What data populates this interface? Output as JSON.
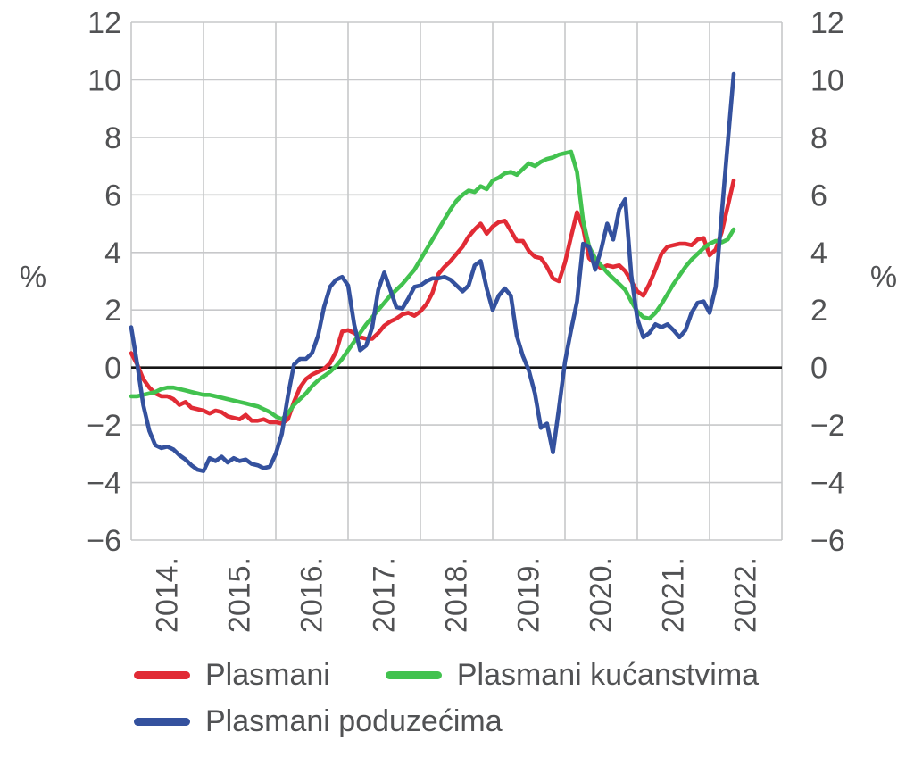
{
  "chart_data": {
    "type": "line",
    "title": "",
    "unit_label": "%",
    "x_frequency": "monthly",
    "x_start": "2014-01",
    "x_end": "2022-05",
    "x_axis_span_months": 108,
    "xtick_labels": [
      "2014.",
      "2015.",
      "2016.",
      "2017.",
      "2018.",
      "2019.",
      "2020.",
      "2021.",
      "2022."
    ],
    "ylim": [
      -6,
      12
    ],
    "yticks": [
      12,
      10,
      8,
      6,
      4,
      2,
      0,
      -2,
      -4,
      -6
    ],
    "grid": true,
    "zero_line": true,
    "legend_position": "bottom-left",
    "series": [
      {
        "name": "Plasmani",
        "color": "#e12b35",
        "values": [
          0.5,
          0.1,
          -0.4,
          -0.7,
          -0.9,
          -1.0,
          -1.0,
          -1.1,
          -1.3,
          -1.2,
          -1.4,
          -1.45,
          -1.5,
          -1.6,
          -1.5,
          -1.55,
          -1.7,
          -1.75,
          -1.8,
          -1.65,
          -1.85,
          -1.85,
          -1.8,
          -1.9,
          -1.9,
          -1.95,
          -1.8,
          -1.2,
          -0.7,
          -0.4,
          -0.25,
          -0.15,
          -0.05,
          0.15,
          0.55,
          1.25,
          1.3,
          1.2,
          1.05,
          1.0,
          1.0,
          1.2,
          1.45,
          1.6,
          1.7,
          1.85,
          1.9,
          1.8,
          1.95,
          2.2,
          2.6,
          3.25,
          3.5,
          3.7,
          3.95,
          4.2,
          4.55,
          4.8,
          5.0,
          4.65,
          4.9,
          5.05,
          5.1,
          4.75,
          4.4,
          4.4,
          4.05,
          3.85,
          3.8,
          3.5,
          3.1,
          3.0,
          3.65,
          4.55,
          5.4,
          4.85,
          3.8,
          3.6,
          3.45,
          3.55,
          3.5,
          3.55,
          3.35,
          3.0,
          2.65,
          2.5,
          2.9,
          3.4,
          3.95,
          4.2,
          4.25,
          4.3,
          4.3,
          4.25,
          4.45,
          4.5,
          3.9,
          4.1,
          4.7,
          5.6,
          6.5
        ]
      },
      {
        "name": "Plasmani kućanstvima",
        "color": "#42c24f",
        "values": [
          -1.0,
          -1.0,
          -0.95,
          -0.9,
          -0.85,
          -0.75,
          -0.7,
          -0.7,
          -0.75,
          -0.8,
          -0.85,
          -0.9,
          -0.95,
          -0.95,
          -1.0,
          -1.05,
          -1.1,
          -1.15,
          -1.2,
          -1.25,
          -1.3,
          -1.35,
          -1.45,
          -1.55,
          -1.7,
          -1.8,
          -1.6,
          -1.3,
          -1.1,
          -0.9,
          -0.65,
          -0.45,
          -0.3,
          -0.15,
          0.05,
          0.3,
          0.6,
          0.9,
          1.2,
          1.5,
          1.75,
          2.0,
          2.25,
          2.5,
          2.7,
          2.9,
          3.15,
          3.4,
          3.75,
          4.1,
          4.45,
          4.8,
          5.15,
          5.5,
          5.8,
          6.0,
          6.15,
          6.1,
          6.3,
          6.2,
          6.5,
          6.6,
          6.75,
          6.8,
          6.7,
          6.9,
          7.1,
          7.0,
          7.15,
          7.25,
          7.3,
          7.4,
          7.45,
          7.5,
          6.8,
          5.1,
          4.2,
          3.8,
          3.55,
          3.3,
          3.1,
          2.9,
          2.7,
          2.3,
          1.95,
          1.75,
          1.7,
          1.9,
          2.2,
          2.55,
          2.9,
          3.2,
          3.5,
          3.75,
          3.95,
          4.15,
          4.3,
          4.4,
          4.35,
          4.45,
          4.8
        ]
      },
      {
        "name": "Plasmani poduzećima",
        "color": "#34519e",
        "values": [
          1.4,
          0.1,
          -1.3,
          -2.2,
          -2.7,
          -2.8,
          -2.75,
          -2.85,
          -3.05,
          -3.2,
          -3.4,
          -3.55,
          -3.6,
          -3.15,
          -3.25,
          -3.1,
          -3.3,
          -3.15,
          -3.25,
          -3.2,
          -3.35,
          -3.4,
          -3.5,
          -3.45,
          -3.0,
          -2.3,
          -1.0,
          0.1,
          0.3,
          0.3,
          0.5,
          1.1,
          2.1,
          2.8,
          3.05,
          3.15,
          2.85,
          1.5,
          0.6,
          0.77,
          1.4,
          2.7,
          3.3,
          2.7,
          2.1,
          2.05,
          2.4,
          2.8,
          2.85,
          3.0,
          3.1,
          3.1,
          3.15,
          3.05,
          2.85,
          2.65,
          2.85,
          3.55,
          3.7,
          2.75,
          2.0,
          2.5,
          2.75,
          2.5,
          1.1,
          0.4,
          -0.1,
          -0.9,
          -2.1,
          -1.95,
          -2.95,
          -1.4,
          0.2,
          1.3,
          2.3,
          4.3,
          4.2,
          3.4,
          4.1,
          5.0,
          4.45,
          5.5,
          5.85,
          3.2,
          1.7,
          1.05,
          1.2,
          1.5,
          1.4,
          1.5,
          1.3,
          1.05,
          1.3,
          1.9,
          2.25,
          2.3,
          1.9,
          2.8,
          5.3,
          7.8,
          10.2
        ]
      }
    ]
  },
  "axis_units": {
    "left": "%",
    "right": "%"
  },
  "colors": {
    "grid": "#c7c8ca",
    "zero_line": "#151515",
    "tick_text": "#515254"
  }
}
